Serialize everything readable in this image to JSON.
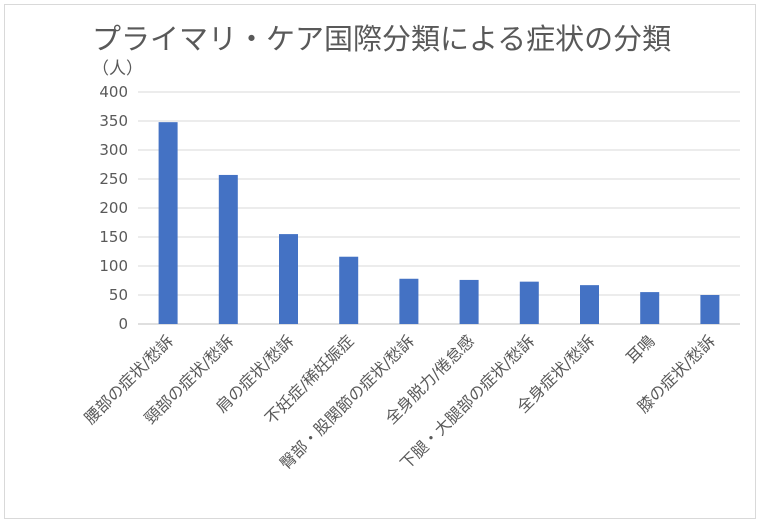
{
  "chart_data": {
    "type": "bar",
    "title": "プライマリ・ケア国際分類による症状の分類",
    "ylabel": "（人）",
    "xlabel": "",
    "categories": [
      "腰部の症状/愁訴",
      "頸部の症状/愁訴",
      "肩の症状/愁訴",
      "不妊症/稀妊娠症",
      "臀部・股関節の症状/愁訴",
      "全身脱力/倦怠感",
      "下腿・大腿部の症状/愁訴",
      "全身症状/愁訴",
      "耳鳴",
      "膝の症状/愁訴"
    ],
    "values": [
      348,
      257,
      155,
      116,
      78,
      76,
      73,
      67,
      55,
      50
    ],
    "ylim": [
      0,
      400
    ],
    "yticks": [
      "0",
      "50",
      "100",
      "150",
      "200",
      "250",
      "300",
      "350",
      "400"
    ],
    "grid": true,
    "bar_color": "#4472c4"
  }
}
